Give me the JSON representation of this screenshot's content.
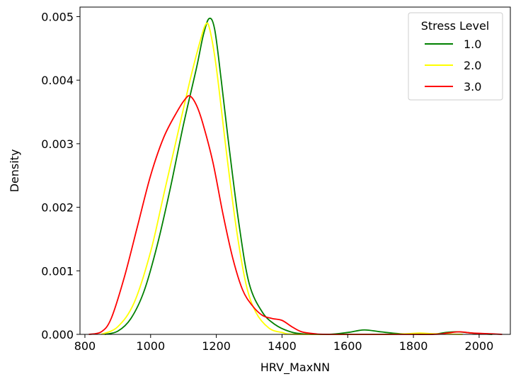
{
  "chart_data": {
    "type": "line",
    "title": "",
    "xlabel": "HRV_MaxNN",
    "ylabel": "Density",
    "xlim": [
      785,
      2095
    ],
    "ylim": [
      0,
      0.00515
    ],
    "x_ticks": [
      800,
      1000,
      1200,
      1400,
      1600,
      1800,
      2000
    ],
    "x_tick_labels": [
      "800",
      "1000",
      "1200",
      "1400",
      "1600",
      "1800",
      "2000"
    ],
    "y_ticks": [
      0,
      0.001,
      0.002,
      0.003,
      0.004,
      0.005
    ],
    "y_tick_labels": [
      "0.000",
      "0.001",
      "0.002",
      "0.003",
      "0.004",
      "0.005"
    ],
    "grid": false,
    "legend": {
      "title": "Stress Level",
      "placement": "top-right"
    },
    "series": [
      {
        "name": "1.0",
        "color": "#008000",
        "points": [
          [
            860,
            0
          ],
          [
            900,
            5e-05
          ],
          [
            940,
            0.00025
          ],
          [
            980,
            0.00068
          ],
          [
            1020,
            0.0014
          ],
          [
            1060,
            0.0023
          ],
          [
            1100,
            0.0033
          ],
          [
            1140,
            0.0042
          ],
          [
            1160,
            0.0047
          ],
          [
            1178,
            0.00497
          ],
          [
            1195,
            0.0048
          ],
          [
            1215,
            0.004
          ],
          [
            1240,
            0.0029
          ],
          [
            1270,
            0.0017
          ],
          [
            1300,
            0.0008
          ],
          [
            1340,
            0.00035
          ],
          [
            1380,
            0.00015
          ],
          [
            1420,
            5e-05
          ],
          [
            1460,
            1e-05
          ],
          [
            1540,
            0.0
          ],
          [
            1600,
            3e-05
          ],
          [
            1650,
            7e-05
          ],
          [
            1700,
            4e-05
          ],
          [
            1760,
            1e-05
          ],
          [
            1850,
            0.0
          ],
          [
            1900,
            3e-05
          ],
          [
            1930,
            4e-05
          ],
          [
            1960,
            3e-05
          ],
          [
            2000,
            1e-05
          ],
          [
            2040,
            0.0
          ]
        ]
      },
      {
        "name": "2.0",
        "color": "#ffff00",
        "points": [
          [
            850,
            0
          ],
          [
            900,
            0.00012
          ],
          [
            950,
            0.0005
          ],
          [
            1000,
            0.0013
          ],
          [
            1040,
            0.0022
          ],
          [
            1080,
            0.0031
          ],
          [
            1120,
            0.004
          ],
          [
            1150,
            0.0046
          ],
          [
            1168,
            0.00488
          ],
          [
            1180,
            0.0048
          ],
          [
            1200,
            0.0042
          ],
          [
            1230,
            0.0029
          ],
          [
            1260,
            0.0017
          ],
          [
            1290,
            0.0008
          ],
          [
            1320,
            0.00035
          ],
          [
            1360,
            0.0001
          ],
          [
            1400,
            3e-05
          ],
          [
            1450,
            0.0
          ],
          [
            1700,
            0.0
          ],
          [
            1780,
            1e-05
          ],
          [
            1820,
            2e-05
          ],
          [
            1860,
            1e-05
          ],
          [
            1950,
            0.0
          ]
        ]
      },
      {
        "name": "3.0",
        "color": "#ff0000",
        "points": [
          [
            812,
            0
          ],
          [
            850,
            4e-05
          ],
          [
            880,
            0.00025
          ],
          [
            920,
            0.0009
          ],
          [
            960,
            0.0017
          ],
          [
            1000,
            0.0025
          ],
          [
            1040,
            0.0031
          ],
          [
            1080,
            0.0035
          ],
          [
            1105,
            0.0037
          ],
          [
            1120,
            0.00375
          ],
          [
            1140,
            0.0036
          ],
          [
            1160,
            0.0033
          ],
          [
            1190,
            0.0027
          ],
          [
            1220,
            0.0019
          ],
          [
            1250,
            0.0012
          ],
          [
            1280,
            0.0007
          ],
          [
            1310,
            0.00045
          ],
          [
            1340,
            0.0003
          ],
          [
            1370,
            0.00025
          ],
          [
            1400,
            0.00022
          ],
          [
            1430,
            0.00012
          ],
          [
            1460,
            4e-05
          ],
          [
            1500,
            1e-05
          ],
          [
            1550,
            0.0
          ],
          [
            1850,
            0.0
          ],
          [
            1900,
            2e-05
          ],
          [
            1940,
            4e-05
          ],
          [
            1980,
            2e-05
          ],
          [
            2030,
            1e-05
          ],
          [
            2070,
            0.0
          ]
        ]
      }
    ]
  }
}
